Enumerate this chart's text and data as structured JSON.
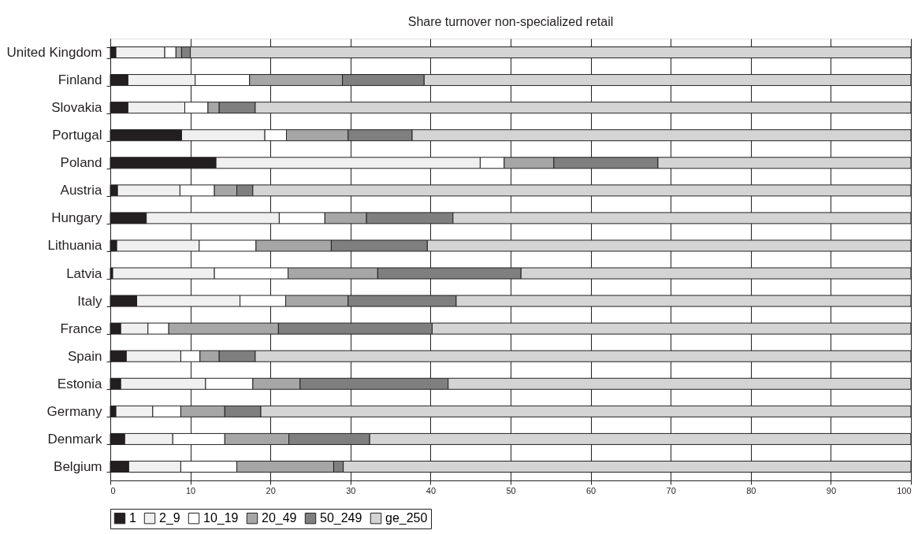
{
  "chart_data": {
    "type": "bar",
    "orientation": "horizontal",
    "stacked": true,
    "title": "Share turnover non-specialized retail",
    "categories": [
      "United Kingdom",
      "Finland",
      "Slovakia",
      "Portugal",
      "Poland",
      "Austria",
      "Hungary",
      "Lithuania",
      "Latvia",
      "Italy",
      "France",
      "Spain",
      "Estonia",
      "Germany",
      "Denmark",
      "Belgium"
    ],
    "series": [
      {
        "name": "1",
        "color": "#231f20",
        "values": [
          0.7,
          2.2,
          2.2,
          8.9,
          13.2,
          0.9,
          4.5,
          0.8,
          0.3,
          3.3,
          1.3,
          2.0,
          1.3,
          0.7,
          1.8,
          2.3
        ]
      },
      {
        "name": "2_9",
        "color": "#f0f0f0",
        "values": [
          6.1,
          8.4,
          7.1,
          10.4,
          33.0,
          7.8,
          16.6,
          10.3,
          12.7,
          12.9,
          3.4,
          6.8,
          10.6,
          4.6,
          6.0,
          6.5
        ]
      },
      {
        "name": "10_19",
        "color": "#ffffff",
        "values": [
          1.4,
          6.8,
          2.9,
          2.7,
          3.0,
          4.3,
          5.7,
          7.1,
          9.2,
          5.7,
          2.6,
          2.4,
          5.9,
          3.5,
          6.5,
          7.0
        ]
      },
      {
        "name": "20_49",
        "color": "#a6a6a6",
        "values": [
          0.7,
          11.6,
          1.4,
          7.7,
          6.2,
          2.8,
          5.2,
          9.4,
          11.2,
          7.8,
          13.7,
          2.4,
          5.9,
          5.5,
          8.0,
          12.1
        ]
      },
      {
        "name": "50_249",
        "color": "#7f7f7f",
        "values": [
          1.1,
          10.2,
          4.5,
          8.0,
          13.0,
          2.0,
          10.8,
          12.0,
          17.9,
          13.5,
          19.2,
          4.5,
          18.5,
          4.5,
          10.1,
          1.2
        ]
      },
      {
        "name": "ge_250",
        "color": "#d4d4d4",
        "values": [
          90.0,
          60.8,
          81.9,
          62.3,
          31.6,
          82.2,
          57.2,
          60.4,
          48.7,
          56.8,
          59.8,
          81.9,
          57.8,
          81.2,
          67.6,
          70.9
        ]
      }
    ],
    "xlim": [
      0,
      100
    ],
    "xticks": [
      0,
      10,
      20,
      30,
      40,
      50,
      60,
      70,
      80,
      90,
      100
    ],
    "grid": "x",
    "legend": "bottom"
  }
}
